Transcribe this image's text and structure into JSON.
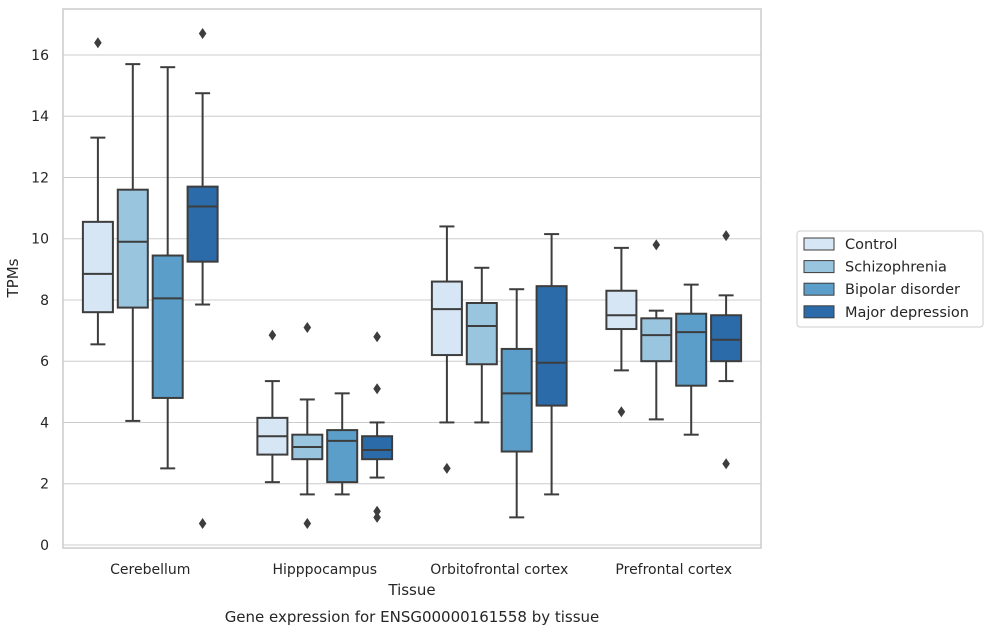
{
  "chart_data": {
    "type": "box",
    "title": "Gene expression for ENSG00000161558 by tissue",
    "xlabel": "Tissue",
    "ylabel": "TPMs",
    "ylim": [
      -0.1,
      17.5
    ],
    "yticks": [
      0,
      2,
      4,
      6,
      8,
      10,
      12,
      14,
      16
    ],
    "grid": true,
    "legend_position": "right",
    "categories": [
      "Cerebellum",
      "Hipppocampus",
      "Orbitofrontal cortex",
      "Prefrontal cortex"
    ],
    "series": [
      {
        "name": "Control",
        "color": "#d6e6f4",
        "boxes": [
          {
            "whislo": 6.55,
            "q1": 7.6,
            "med": 8.85,
            "q3": 10.55,
            "whishi": 13.3,
            "fliers": [
              16.4
            ]
          },
          {
            "whislo": 2.05,
            "q1": 2.95,
            "med": 3.55,
            "q3": 4.15,
            "whishi": 5.35,
            "fliers": [
              6.85
            ]
          },
          {
            "whislo": 4.0,
            "q1": 6.2,
            "med": 7.7,
            "q3": 8.6,
            "whishi": 10.4,
            "fliers": [
              2.5
            ]
          },
          {
            "whislo": 5.7,
            "q1": 7.05,
            "med": 7.5,
            "q3": 8.3,
            "whishi": 9.7,
            "fliers": [
              4.35
            ]
          }
        ]
      },
      {
        "name": "Schizophrenia",
        "color": "#9ac5df",
        "boxes": [
          {
            "whislo": 4.05,
            "q1": 7.75,
            "med": 9.9,
            "q3": 11.6,
            "whishi": 15.7,
            "fliers": []
          },
          {
            "whislo": 1.65,
            "q1": 2.8,
            "med": 3.2,
            "q3": 3.6,
            "whishi": 4.75,
            "fliers": [
              0.7,
              7.1
            ]
          },
          {
            "whislo": 4.0,
            "q1": 5.9,
            "med": 7.15,
            "q3": 7.9,
            "whishi": 9.05,
            "fliers": []
          },
          {
            "whislo": 4.1,
            "q1": 6.0,
            "med": 6.85,
            "q3": 7.4,
            "whishi": 7.65,
            "fliers": [
              9.8
            ]
          }
        ]
      },
      {
        "name": "Bipolar disorder",
        "color": "#5a9ec9",
        "boxes": [
          {
            "whislo": 2.5,
            "q1": 4.8,
            "med": 8.05,
            "q3": 9.45,
            "whishi": 15.6,
            "fliers": []
          },
          {
            "whislo": 1.65,
            "q1": 2.05,
            "med": 3.4,
            "q3": 3.75,
            "whishi": 4.95,
            "fliers": []
          },
          {
            "whislo": 0.9,
            "q1": 3.05,
            "med": 4.95,
            "q3": 6.4,
            "whishi": 8.35,
            "fliers": []
          },
          {
            "whislo": 3.6,
            "q1": 5.2,
            "med": 6.95,
            "q3": 7.55,
            "whishi": 8.5,
            "fliers": []
          }
        ]
      },
      {
        "name": "Major depression",
        "color": "#2b6ba9",
        "boxes": [
          {
            "whislo": 7.85,
            "q1": 9.25,
            "med": 11.05,
            "q3": 11.7,
            "whishi": 14.75,
            "fliers": [
              0.7,
              16.7
            ]
          },
          {
            "whislo": 2.2,
            "q1": 2.8,
            "med": 3.1,
            "q3": 3.55,
            "whishi": 4.0,
            "fliers": [
              0.9,
              1.1,
              5.1,
              6.8
            ]
          },
          {
            "whislo": 1.65,
            "q1": 4.55,
            "med": 5.95,
            "q3": 8.45,
            "whishi": 10.15,
            "fliers": []
          },
          {
            "whislo": 5.35,
            "q1": 6.0,
            "med": 6.7,
            "q3": 7.5,
            "whishi": 8.15,
            "fliers": [
              2.65,
              10.1
            ]
          }
        ]
      }
    ]
  }
}
